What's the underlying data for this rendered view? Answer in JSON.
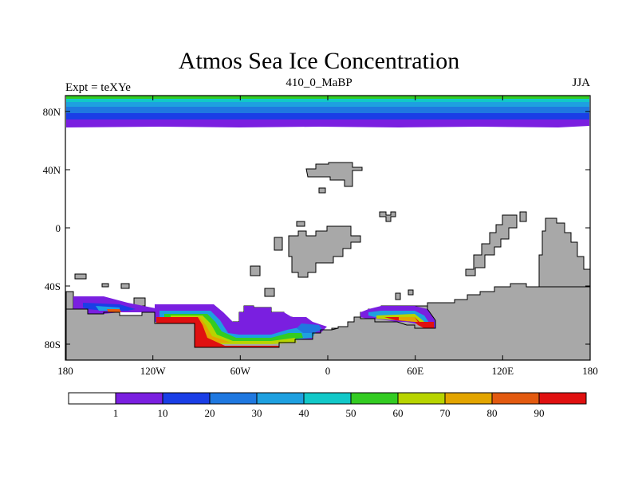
{
  "title": "Atmos Sea Ice Concentration",
  "left_subtitle": "Expt = teXYe",
  "center_subtitle": "410_0_MaBP",
  "right_subtitle": "JJA",
  "map": {
    "lon_ticks": [
      "180",
      "120W",
      "60W",
      "0",
      "60E",
      "120E",
      "180"
    ],
    "lat_ticks": [
      "80N",
      "40N",
      "0",
      "40S",
      "80S"
    ],
    "land_color": "#a8a8a8",
    "ocean_color": "#ffffff"
  },
  "colorbar": {
    "labels": [
      "1",
      "10",
      "20",
      "30",
      "40",
      "50",
      "60",
      "70",
      "80",
      "90"
    ],
    "colors": [
      "#ffffff",
      "#7a1fe0",
      "#1a3ee6",
      "#1f78e0",
      "#1ea0e0",
      "#11c8c8",
      "#33cc22",
      "#b8d400",
      "#e3a500",
      "#e35a10",
      "#e01010"
    ]
  }
}
